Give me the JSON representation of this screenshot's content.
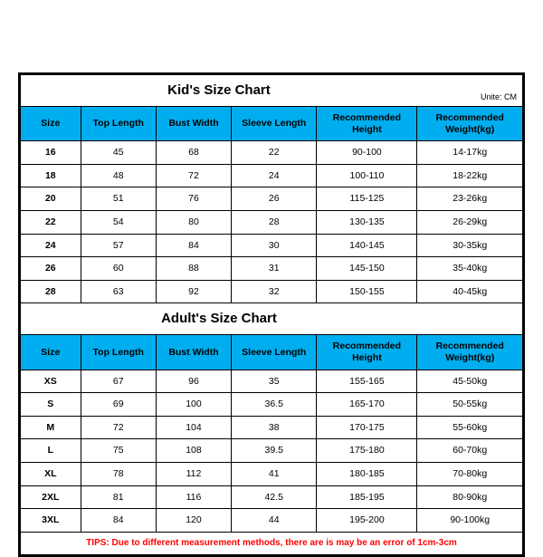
{
  "unit_label": "Unite: CM",
  "header_bg": "#00aeef",
  "tips_color": "#ff0000",
  "columns": [
    "Size",
    "Top Length",
    "Bust Width",
    "Sleeve Length",
    "Recommended Height",
    "Recommended Weight(kg)"
  ],
  "kids": {
    "title": "Kid's Size Chart",
    "rows": [
      [
        "16",
        "45",
        "68",
        "22",
        "90-100",
        "14-17kg"
      ],
      [
        "18",
        "48",
        "72",
        "24",
        "100-110",
        "18-22kg"
      ],
      [
        "20",
        "51",
        "76",
        "26",
        "115-125",
        "23-26kg"
      ],
      [
        "22",
        "54",
        "80",
        "28",
        "130-135",
        "26-29kg"
      ],
      [
        "24",
        "57",
        "84",
        "30",
        "140-145",
        "30-35kg"
      ],
      [
        "26",
        "60",
        "88",
        "31",
        "145-150",
        "35-40kg"
      ],
      [
        "28",
        "63",
        "92",
        "32",
        "150-155",
        "40-45kg"
      ]
    ]
  },
  "adults": {
    "title": "Adult's Size Chart",
    "rows": [
      [
        "XS",
        "67",
        "96",
        "35",
        "155-165",
        "45-50kg"
      ],
      [
        "S",
        "69",
        "100",
        "36.5",
        "165-170",
        "50-55kg"
      ],
      [
        "M",
        "72",
        "104",
        "38",
        "170-175",
        "55-60kg"
      ],
      [
        "L",
        "75",
        "108",
        "39.5",
        "175-180",
        "60-70kg"
      ],
      [
        "XL",
        "78",
        "112",
        "41",
        "180-185",
        "70-80kg"
      ],
      [
        "2XL",
        "81",
        "116",
        "42.5",
        "185-195",
        "80-90kg"
      ],
      [
        "3XL",
        "84",
        "120",
        "44",
        "195-200",
        "90-100kg"
      ]
    ]
  },
  "tips": "TIPS: Due to different measurement methods, there are is may be an error of 1cm-3cm"
}
